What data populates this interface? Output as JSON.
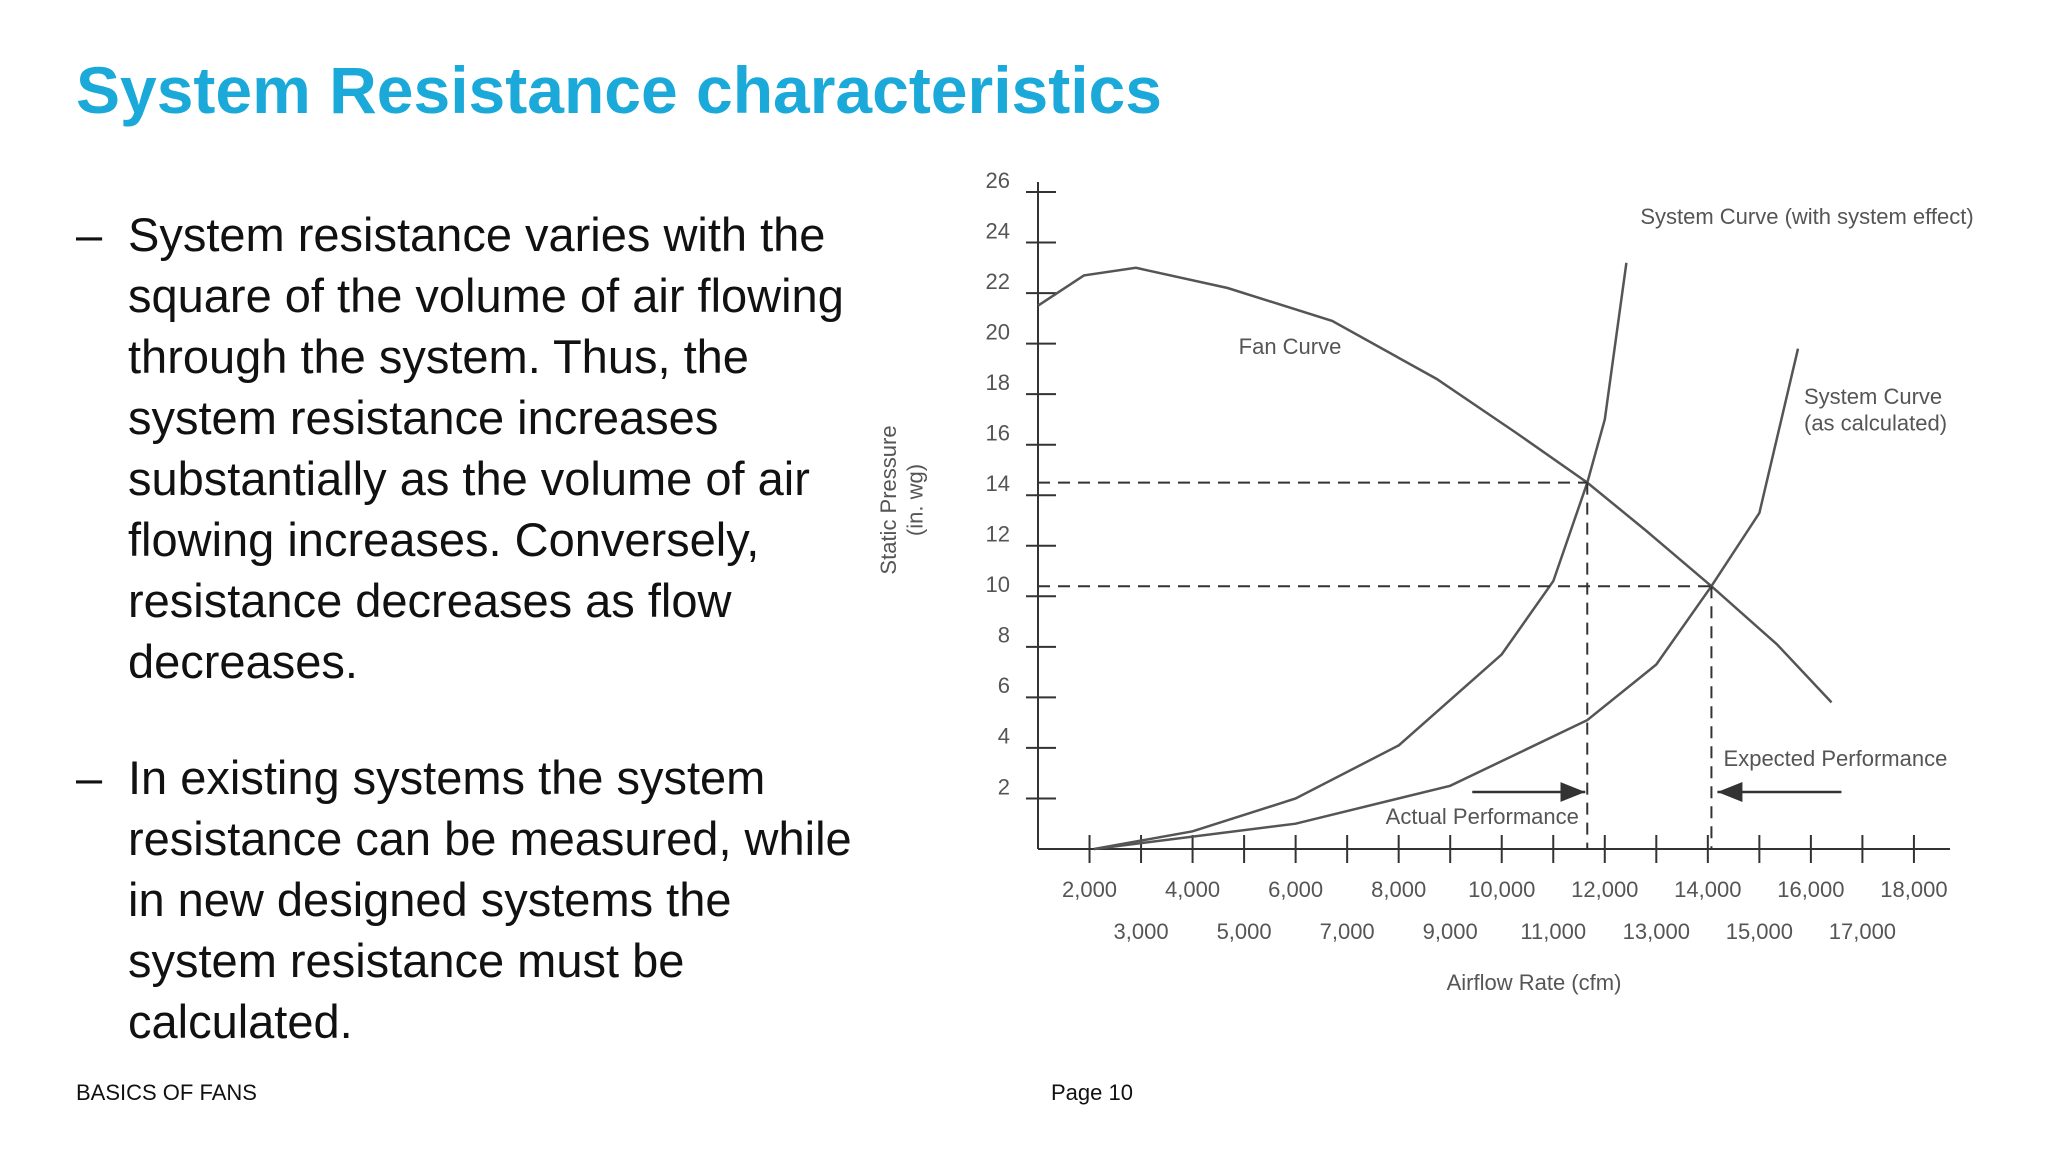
{
  "title": "System Resistance characteristics",
  "bullets": [
    "System resistance varies with the square of the volume of air flowing through the system. Thus, the system resistance increases substantially as the volume of air flowing increases. Conversely, resistance decreases as flow decreases.",
    "In existing systems the system resistance can be measured, while in new designed systems the system resistance must be calculated."
  ],
  "footer": {
    "left": "BASICS OF FANS",
    "right": "Page 10"
  },
  "chart_data": {
    "type": "line",
    "x_label": "Airflow Rate (cfm)",
    "y_label": "Static Pressure\n(in. wg)",
    "xlim": [
      1000,
      18700
    ],
    "ylim": [
      0,
      26
    ],
    "xticks": [
      {
        "value": 2000,
        "label": "2,000"
      },
      {
        "value": 3000,
        "label": "3,000"
      },
      {
        "value": 4000,
        "label": "4,000"
      },
      {
        "value": 5000,
        "label": "5,000"
      },
      {
        "value": 6000,
        "label": "6,000"
      },
      {
        "value": 7000,
        "label": "7,000"
      },
      {
        "value": 8000,
        "label": "8,000"
      },
      {
        "value": 9000,
        "label": "9,000"
      },
      {
        "value": 10000,
        "label": "10,000"
      },
      {
        "value": 11000,
        "label": "11,000"
      },
      {
        "value": 12000,
        "label": "12,000"
      },
      {
        "value": 13000,
        "label": "13,000"
      },
      {
        "value": 14000,
        "label": "14,000"
      },
      {
        "value": 15000,
        "label": "15,000"
      },
      {
        "value": 16000,
        "label": "16,000"
      },
      {
        "value": 17000,
        "label": "17,000"
      },
      {
        "value": 18000,
        "label": "18,000"
      }
    ],
    "yticks": [
      2,
      4,
      6,
      8,
      10,
      12,
      14,
      16,
      18,
      20,
      22,
      24,
      26
    ],
    "series": [
      {
        "name": "Fan Curve",
        "color": "#555555",
        "x": [
          1000,
          1890,
          2900,
          4680,
          6710,
          8740,
          10260,
          11660,
          12800,
          14070,
          15340,
          16400
        ],
        "values": [
          21.5,
          22.7,
          23.0,
          22.2,
          20.9,
          18.6,
          16.5,
          14.5,
          12.6,
          10.4,
          8.1,
          5.8
        ]
      },
      {
        "name": "System Curve (with system effect)",
        "color": "#555555",
        "x": [
          2090,
          4000,
          6000,
          8000,
          10000,
          11000,
          11660,
          12000,
          12420
        ],
        "values": [
          0,
          0.7,
          2.0,
          4.1,
          7.7,
          10.6,
          14.5,
          17,
          23.2
        ]
      },
      {
        "name": "System Curve\n(as calculated)",
        "color": "#555555",
        "x": [
          2090,
          6000,
          9000,
          11660,
          13000,
          14070,
          15000,
          15750
        ],
        "values": [
          0,
          1.0,
          2.5,
          5.1,
          7.3,
          10.4,
          13.3,
          19.8
        ]
      }
    ],
    "operating_points": [
      {
        "name": "Actual Performance",
        "x": 11660,
        "y": 14.5
      },
      {
        "name": "Expected Performance",
        "x": 14070,
        "y": 10.4
      }
    ]
  }
}
